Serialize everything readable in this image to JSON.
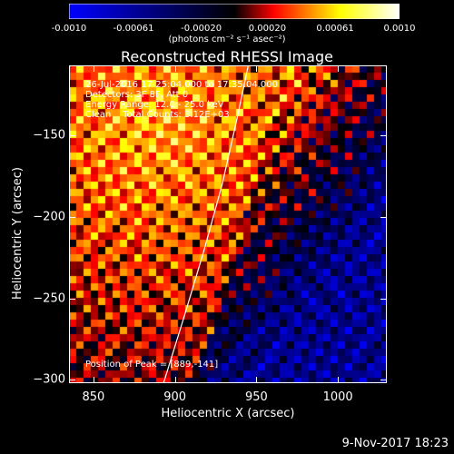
{
  "colorbar": {
    "ticks": [
      "-0.0010",
      "-0.00061",
      "-0.00020",
      "0.00020",
      "0.00061",
      "0.0010"
    ],
    "tick_values": [
      -0.001,
      -0.00061,
      -0.0002,
      0.0002,
      0.00061,
      0.001
    ],
    "label": "(photons cm⁻² s⁻¹ asec⁻²)",
    "colors": [
      "#0000ff",
      "#000000",
      "#ff0000",
      "#ffff00",
      "#ffffff"
    ]
  },
  "chart_data": {
    "type": "heatmap",
    "title": "Reconstructed RHESSI Image",
    "xlabel": "Heliocentric X (arcsec)",
    "ylabel": "Heliocentric Y (arcsec)",
    "xlim": [
      835,
      1030
    ],
    "ylim": [
      -302,
      -107
    ],
    "xticks": [
      850,
      900,
      950,
      1000
    ],
    "yticks": [
      -150,
      -200,
      -250,
      -300
    ],
    "peak": [
      889,
      -141
    ],
    "limb_curve": [
      [
        893,
        -302
      ],
      [
        906,
        -260
      ],
      [
        918,
        -220
      ],
      [
        929,
        -180
      ],
      [
        938,
        -140
      ],
      [
        945,
        -107
      ]
    ]
  },
  "info": {
    "line1": "26-Jul-2016 17:25:04.000 to 17:35:04.000",
    "line2": "Detectors: 3F 8F, Att 0",
    "line3": "Energy Range: 12.0 - 25.0 keV",
    "line4": "Clean    Total Counts: 3.12E+03",
    "peak": "Position of Peak = [889,-141]"
  },
  "timestamp": "9-Nov-2017 18:23"
}
